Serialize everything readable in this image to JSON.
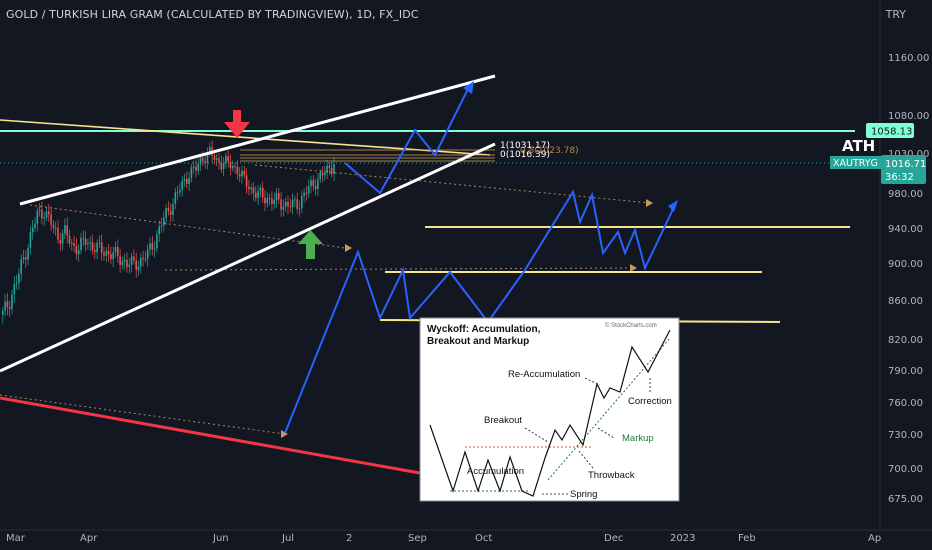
{
  "header": {
    "title": "GOLD / TURKISH LIRA GRAM (CALCULATED BY TRADINGVIEW), 1D, FX_IDC",
    "currency": "TRY"
  },
  "colors": {
    "background": "#131722",
    "up": "#26a69a",
    "down": "#ef5350",
    "projection": "#2962ff",
    "channel": "#ffffff",
    "ath_line": "#7fffd4",
    "support": "#f5e68c",
    "arrow_down": "#f23645",
    "arrow_up": "#4caf50"
  },
  "price_labels": {
    "ath_box": "1058.13",
    "current_price": "1016.71",
    "ticker": "XAUTRYG",
    "countdown": "36:32",
    "ath_text": "ATH"
  },
  "fib_labels": {
    "level1": "1(1031.17)",
    "level0": "0(1016.39)",
    "level_mid": "0.5(1023.78)"
  },
  "inset": {
    "title_line1": "Wyckoff: Accumulation,",
    "title_line2": "Breakout and Markup",
    "copyright": "© StockCharts.com",
    "labels": {
      "reaccumulation": "Re-Accumulation",
      "correction": "Correction",
      "breakout": "Breakout",
      "markup": "Markup",
      "throwback": "Throwback",
      "accumulation": "Accumulation",
      "spring": "Spring"
    }
  },
  "chart_data": {
    "type": "line",
    "title": "GOLD / TURKISH LIRA GRAM (CALCULATED BY TRADINGVIEW), 1D, FX_IDC",
    "xlabel": "",
    "ylabel": "",
    "y_ticks": [
      1160,
      1080,
      1030,
      980,
      940,
      900,
      860,
      820,
      790,
      760,
      730,
      700,
      675
    ],
    "x_ticks": [
      "Mar",
      "Apr",
      "Jun",
      "Jul",
      "2",
      "Sep",
      "Oct",
      "Dec",
      "2023",
      "Feb",
      "Ap"
    ],
    "ylim": [
      660,
      1200
    ],
    "series": [
      {
        "values": [
          [
            0,
            845
          ],
          [
            3,
            860
          ],
          [
            6,
            880
          ],
          [
            9,
            905
          ],
          [
            12,
            930
          ],
          [
            15,
            955
          ],
          [
            18,
            960
          ],
          [
            21,
            945
          ],
          [
            24,
            930
          ],
          [
            27,
            935
          ],
          [
            30,
            920
          ],
          [
            33,
            918
          ],
          [
            36,
            925
          ],
          [
            39,
            920
          ],
          [
            42,
            915
          ],
          [
            45,
            912
          ],
          [
            48,
            910
          ],
          [
            51,
            905
          ],
          [
            54,
            900
          ],
          [
            57,
            898
          ],
          [
            60,
            903
          ],
          [
            63,
            910
          ],
          [
            66,
            925
          ],
          [
            69,
            945
          ],
          [
            72,
            960
          ],
          [
            75,
            975
          ],
          [
            78,
            990
          ],
          [
            81,
            1005
          ],
          [
            84,
            1010
          ],
          [
            87,
            1025
          ],
          [
            90,
            1030
          ],
          [
            93,
            1020
          ],
          [
            96,
            1018
          ],
          [
            99,
            1015
          ],
          [
            102,
            1010
          ],
          [
            105,
            995
          ],
          [
            108,
            985
          ],
          [
            111,
            978
          ],
          [
            114,
            975
          ],
          [
            117,
            972
          ],
          [
            120,
            970
          ],
          [
            123,
            967
          ],
          [
            126,
            965
          ],
          [
            129,
            970
          ],
          [
            132,
            982
          ],
          [
            135,
            992
          ],
          [
            138,
            1000
          ],
          [
            141,
            1008
          ],
          [
            144,
            1016
          ]
        ]
      }
    ],
    "annotations": [
      {
        "text": "ATH",
        "price": 1058.13
      },
      {
        "text": "1(1031.17)",
        "price": 1031.17
      },
      {
        "text": "0(1016.39)",
        "price": 1016.39
      }
    ],
    "grid": false,
    "legend": "none"
  }
}
